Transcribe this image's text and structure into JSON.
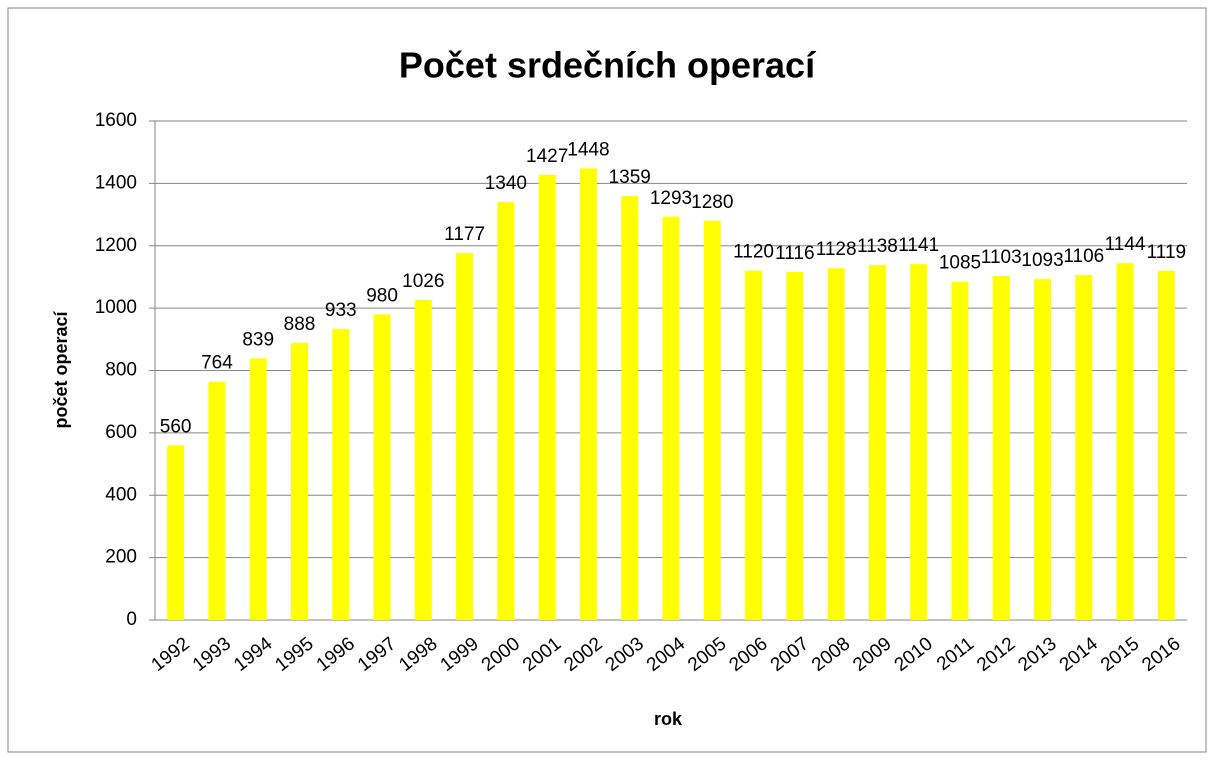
{
  "chart_data": {
    "type": "bar",
    "title": "Počet srdečních operací",
    "x_label": "rok",
    "y_label": "počet  operací",
    "categories": [
      "1992",
      "1993",
      "1994",
      "1995",
      "1996",
      "1997",
      "1998",
      "1999",
      "2000",
      "2001",
      "2002",
      "2003",
      "2004",
      "2005",
      "2006",
      "2007",
      "2008",
      "2009",
      "2010",
      "2011",
      "2012",
      "2013",
      "2014",
      "2015",
      "2016"
    ],
    "values": [
      560,
      764,
      839,
      888,
      933,
      980,
      1026,
      1177,
      1340,
      1427,
      1448,
      1359,
      1293,
      1280,
      1120,
      1116,
      1128,
      1138,
      1141,
      1085,
      1103,
      1093,
      1106,
      1144,
      1119
    ],
    "color": "#ffff00",
    "ylim": [
      0,
      1600
    ],
    "yticks": [
      0,
      200,
      400,
      600,
      800,
      1000,
      1200,
      1400,
      1600
    ],
    "grid": true
  }
}
